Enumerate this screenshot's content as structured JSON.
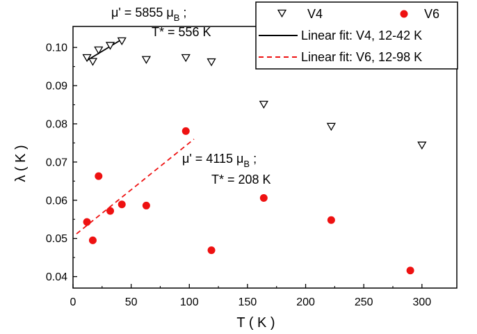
{
  "chart_data": {
    "type": "scatter",
    "xlabel": "T ( K )",
    "ylabel": "λ ( K )",
    "xlim": [
      0,
      330
    ],
    "ylim": [
      0.037,
      0.1055
    ],
    "x_ticks": [
      0,
      50,
      100,
      150,
      200,
      250,
      300
    ],
    "y_ticks": [
      0.04,
      0.05,
      0.06,
      0.07,
      0.08,
      0.09,
      0.1
    ],
    "y_tick_labels": [
      "0.04",
      "0.05",
      "0.06",
      "0.07",
      "0.08",
      "0.09",
      "0.10"
    ],
    "grid": false,
    "legend_position": "top-right",
    "series": [
      {
        "name": "V4",
        "marker": "triangle-down-open",
        "color": "#000000",
        "points": [
          {
            "x": 12,
            "y": 0.0973
          },
          {
            "x": 17,
            "y": 0.0963
          },
          {
            "x": 22,
            "y": 0.0993
          },
          {
            "x": 32,
            "y": 0.1005
          },
          {
            "x": 42,
            "y": 0.1017
          },
          {
            "x": 63,
            "y": 0.0968
          },
          {
            "x": 97,
            "y": 0.0973
          },
          {
            "x": 119,
            "y": 0.0962
          },
          {
            "x": 164,
            "y": 0.0851
          },
          {
            "x": 222,
            "y": 0.0793
          },
          {
            "x": 300,
            "y": 0.0744
          }
        ]
      },
      {
        "name": "V6",
        "marker": "circle-filled",
        "color": "#ee1111",
        "points": [
          {
            "x": 12,
            "y": 0.0543
          },
          {
            "x": 17,
            "y": 0.0495
          },
          {
            "x": 22,
            "y": 0.0663
          },
          {
            "x": 32,
            "y": 0.0572
          },
          {
            "x": 42,
            "y": 0.0589
          },
          {
            "x": 63,
            "y": 0.0586
          },
          {
            "x": 97,
            "y": 0.0781
          },
          {
            "x": 119,
            "y": 0.0469
          },
          {
            "x": 164,
            "y": 0.0606
          },
          {
            "x": 222,
            "y": 0.0548
          },
          {
            "x": 290,
            "y": 0.0416
          }
        ]
      }
    ],
    "fits": [
      {
        "name": "Linear fit: V4, 12-42 K",
        "style": "solid",
        "color": "#000000",
        "x": [
          12,
          44
        ],
        "y": [
          0.0966,
          0.1025
        ]
      },
      {
        "name": "Linear fit: V6, 12-98 K",
        "style": "dashed",
        "color": "#ee1111",
        "x": [
          3,
          104
        ],
        "y": [
          0.0512,
          0.076
        ]
      }
    ],
    "annotations": [
      {
        "line1_prefix": "μ' = 5855 μ",
        "line1_sub": "B",
        "line1_suffix": " ;",
        "line2": "T* = 556 K"
      },
      {
        "line1_prefix": "μ' = 4115 μ",
        "line1_sub": "B",
        "line1_suffix": " ;",
        "line2": "T* = 208 K"
      }
    ]
  }
}
